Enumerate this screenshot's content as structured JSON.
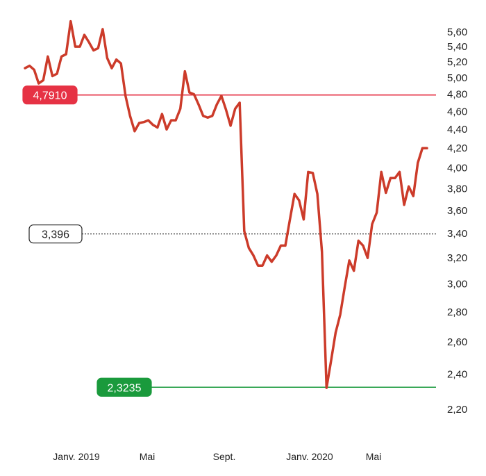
{
  "chart_data": {
    "type": "line",
    "title": "",
    "xlabel": "",
    "ylabel": "",
    "y_scale": "log",
    "grid": false,
    "y_ticks": [
      "2,20",
      "2,40",
      "2,60",
      "2,80",
      "3,00",
      "3,20",
      "3,40",
      "3,60",
      "3,80",
      "4,00",
      "4,20",
      "4,40",
      "4,60",
      "4,80",
      "5,00",
      "5,20",
      "5,40",
      "5,60"
    ],
    "x_ticks": [
      "Janv. 2019",
      "Mai",
      "Sept.",
      "Janv. 2020",
      "Mai"
    ],
    "ylim": [
      2.15,
      5.75
    ],
    "xlim": [
      "2018-11-26",
      "2020-08-03"
    ],
    "series": [
      {
        "color": "#cc3b2a",
        "points": [
          [
            "2018-11-26",
            5.12
          ],
          [
            "2018-12-03",
            5.15
          ],
          [
            "2018-12-10",
            5.1
          ],
          [
            "2018-12-17",
            4.93
          ],
          [
            "2018-12-24",
            4.97
          ],
          [
            "2018-12-31",
            5.27
          ],
          [
            "2019-01-07",
            5.02
          ],
          [
            "2019-01-14",
            5.05
          ],
          [
            "2019-01-21",
            5.27
          ],
          [
            "2019-01-28",
            5.3
          ],
          [
            "2019-02-04",
            5.75
          ],
          [
            "2019-02-11",
            5.4
          ],
          [
            "2019-02-18",
            5.4
          ],
          [
            "2019-02-25",
            5.56
          ],
          [
            "2019-03-04",
            5.46
          ],
          [
            "2019-03-11",
            5.35
          ],
          [
            "2019-03-18",
            5.38
          ],
          [
            "2019-03-25",
            5.64
          ],
          [
            "2019-04-01",
            5.25
          ],
          [
            "2019-04-08",
            5.12
          ],
          [
            "2019-04-15",
            5.23
          ],
          [
            "2019-04-22",
            5.18
          ],
          [
            "2019-04-29",
            4.78
          ],
          [
            "2019-05-06",
            4.55
          ],
          [
            "2019-05-13",
            4.38
          ],
          [
            "2019-05-20",
            4.47
          ],
          [
            "2019-05-27",
            4.48
          ],
          [
            "2019-06-03",
            4.5
          ],
          [
            "2019-06-10",
            4.45
          ],
          [
            "2019-06-17",
            4.42
          ],
          [
            "2019-06-24",
            4.57
          ],
          [
            "2019-07-01",
            4.4
          ],
          [
            "2019-07-08",
            4.5
          ],
          [
            "2019-07-15",
            4.5
          ],
          [
            "2019-07-22",
            4.63
          ],
          [
            "2019-07-29",
            5.08
          ],
          [
            "2019-08-05",
            4.82
          ],
          [
            "2019-08-12",
            4.8
          ],
          [
            "2019-08-19",
            4.68
          ],
          [
            "2019-08-26",
            4.55
          ],
          [
            "2019-09-02",
            4.53
          ],
          [
            "2019-09-09",
            4.55
          ],
          [
            "2019-09-16",
            4.68
          ],
          [
            "2019-09-23",
            4.78
          ],
          [
            "2019-09-30",
            4.62
          ],
          [
            "2019-10-07",
            4.44
          ],
          [
            "2019-10-14",
            4.63
          ],
          [
            "2019-10-21",
            4.7
          ],
          [
            "2019-10-28",
            3.42
          ],
          [
            "2019-11-04",
            3.28
          ],
          [
            "2019-11-11",
            3.22
          ],
          [
            "2019-11-18",
            3.14
          ],
          [
            "2019-11-25",
            3.14
          ],
          [
            "2019-12-02",
            3.22
          ],
          [
            "2019-12-09",
            3.17
          ],
          [
            "2019-12-16",
            3.22
          ],
          [
            "2019-12-23",
            3.3
          ],
          [
            "2019-12-30",
            3.3
          ],
          [
            "2020-01-06",
            3.52
          ],
          [
            "2020-01-13",
            3.75
          ],
          [
            "2020-01-20",
            3.69
          ],
          [
            "2020-01-27",
            3.52
          ],
          [
            "2020-02-03",
            3.96
          ],
          [
            "2020-02-10",
            3.95
          ],
          [
            "2020-02-17",
            3.75
          ],
          [
            "2020-02-24",
            3.25
          ],
          [
            "2020-03-02",
            2.32
          ],
          [
            "2020-03-09",
            2.48
          ],
          [
            "2020-03-16",
            2.66
          ],
          [
            "2020-03-23",
            2.78
          ],
          [
            "2020-03-30",
            2.98
          ],
          [
            "2020-04-06",
            3.18
          ],
          [
            "2020-04-13",
            3.1
          ],
          [
            "2020-04-20",
            3.34
          ],
          [
            "2020-04-27",
            3.3
          ],
          [
            "2020-05-04",
            3.2
          ],
          [
            "2020-05-11",
            3.48
          ],
          [
            "2020-05-18",
            3.58
          ],
          [
            "2020-05-25",
            3.96
          ],
          [
            "2020-06-01",
            3.76
          ],
          [
            "2020-06-08",
            3.9
          ],
          [
            "2020-06-15",
            3.9
          ],
          [
            "2020-06-22",
            3.96
          ],
          [
            "2020-06-29",
            3.65
          ],
          [
            "2020-07-06",
            3.82
          ],
          [
            "2020-07-13",
            3.73
          ],
          [
            "2020-07-20",
            4.05
          ],
          [
            "2020-07-27",
            4.2
          ],
          [
            "2020-08-03",
            4.2
          ]
        ]
      }
    ],
    "reference_lines": [
      {
        "value": 4.791,
        "label": "4,7910",
        "color": "#e63244",
        "style": "solid",
        "badge_fill": "#e63244",
        "badge_text_color": "#ffffff"
      },
      {
        "value": 3.396,
        "label": "3,396",
        "color": "#222222",
        "style": "dotted",
        "badge_fill": "#ffffff",
        "badge_text_color": "#222222"
      },
      {
        "value": 2.3235,
        "label": "2,3235",
        "color": "#1a9a3c",
        "style": "solid",
        "badge_fill": "#1a9a3c",
        "badge_text_color": "#ffffff"
      }
    ]
  }
}
